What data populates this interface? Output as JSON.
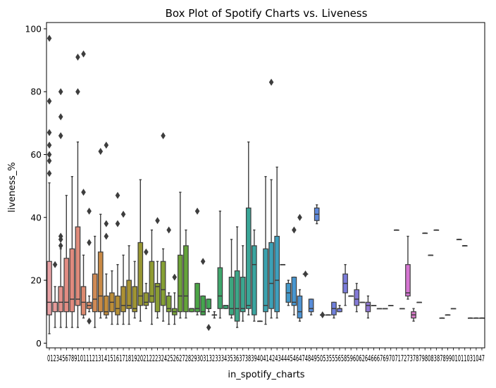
{
  "chart_data": {
    "type": "box",
    "title": "Box Plot of Spotify Charts vs. Liveness",
    "xlabel": "in_spotify_charts",
    "ylabel": "liveness_%",
    "ylim": [
      -1.5,
      102
    ],
    "yticks": [
      0,
      20,
      40,
      60,
      80,
      100
    ],
    "grid": false,
    "x_tick_labels_raw": "01234567891011121314151617181920212223242526272829303132333435363738394041424344454647484950535556585960626466676970717273787980838789901011031047",
    "categories": [
      "0",
      "1",
      "2",
      "3",
      "4",
      "5",
      "6",
      "7",
      "8",
      "9",
      "10",
      "11",
      "12",
      "13",
      "14",
      "15",
      "16",
      "17",
      "18",
      "19",
      "20",
      "21",
      "22",
      "23",
      "24",
      "25",
      "26",
      "27",
      "28",
      "29",
      "30",
      "31",
      "32",
      "33",
      "34",
      "35",
      "36",
      "37",
      "38",
      "39",
      "40",
      "41",
      "42",
      "43",
      "44",
      "45",
      "46",
      "47",
      "48",
      "49",
      "50",
      "53",
      "55",
      "56",
      "58",
      "59",
      "60",
      "62",
      "64",
      "66",
      "67",
      "69",
      "70",
      "71",
      "72",
      "73",
      "78",
      "79",
      "80",
      "83",
      "87",
      "89",
      "90",
      "101",
      "103",
      "104",
      "107"
    ],
    "boxes": [
      {
        "cat": "0",
        "whislo": 3,
        "q1": 9,
        "median": 13,
        "q3": 26,
        "whishi": 51,
        "outliers": [
          54,
          58,
          60,
          63,
          67,
          77,
          97
        ],
        "color": "#e8a0a4"
      },
      {
        "cat": "1",
        "whislo": 5,
        "q1": 10,
        "median": 13,
        "q3": 13,
        "whishi": 18,
        "outliers": [
          25
        ],
        "color": "#e59c9a"
      },
      {
        "cat": "2",
        "whislo": 5,
        "q1": 10,
        "median": 13,
        "q3": 18,
        "whishi": 30,
        "outliers": [
          31,
          33,
          34,
          66,
          72,
          80
        ],
        "color": "#e0908a"
      },
      {
        "cat": "3",
        "whislo": 5,
        "q1": 10,
        "median": 13,
        "q3": 27,
        "whishi": 47,
        "outliers": [],
        "color": "#e28c83"
      },
      {
        "cat": "4",
        "whislo": 5,
        "q1": 10,
        "median": 14,
        "q3": 30,
        "whishi": 53,
        "outliers": [],
        "color": "#e08a7e"
      },
      {
        "cat": "5",
        "whislo": 5,
        "q1": 12,
        "median": 14,
        "q3": 37,
        "whishi": 64,
        "outliers": [
          80,
          91
        ],
        "color": "#de8a7a"
      },
      {
        "cat": "6",
        "whislo": 8,
        "q1": 9,
        "median": 13,
        "q3": 18,
        "whishi": 28,
        "outliers": [
          48,
          92
        ],
        "color": "#dc8a70"
      },
      {
        "cat": "7",
        "whislo": 10,
        "q1": 11,
        "median": 12,
        "q3": 13,
        "whishi": 15,
        "outliers": [
          7,
          32,
          42
        ],
        "color": "#d78a68"
      },
      {
        "cat": "8",
        "whislo": 5,
        "q1": 10,
        "median": 14,
        "q3": 22,
        "whishi": 34,
        "outliers": [],
        "color": "#d08a55"
      },
      {
        "cat": "9",
        "whislo": 8,
        "q1": 10,
        "median": 15,
        "q3": 29,
        "whishi": 41,
        "outliers": [
          61
        ],
        "color": "#c98a45"
      },
      {
        "cat": "10",
        "whislo": 8,
        "q1": 9,
        "median": 10,
        "q3": 15,
        "whishi": 22,
        "outliers": [
          34,
          38,
          63
        ],
        "color": "#c28c3c"
      },
      {
        "cat": "11",
        "whislo": 6,
        "q1": 10,
        "median": 13,
        "q3": 16,
        "whishi": 23,
        "outliers": [],
        "color": "#bc8d37"
      },
      {
        "cat": "12",
        "whislo": 6,
        "q1": 9,
        "median": 11,
        "q3": 15,
        "whishi": 25,
        "outliers": [
          38,
          47
        ],
        "color": "#b58f35"
      },
      {
        "cat": "13",
        "whislo": 6,
        "q1": 10,
        "median": 12,
        "q3": 18,
        "whishi": 28,
        "outliers": [
          41
        ],
        "color": "#ae9133"
      },
      {
        "cat": "14",
        "whislo": 6,
        "q1": 11,
        "median": 12,
        "q3": 20,
        "whishi": 31,
        "outliers": [],
        "color": "#a79333"
      },
      {
        "cat": "15",
        "whislo": 8,
        "q1": 10,
        "median": 11,
        "q3": 18,
        "whishi": 26,
        "outliers": [],
        "color": "#a09532"
      },
      {
        "cat": "16",
        "whislo": 7,
        "q1": 12,
        "median": 15,
        "q3": 32,
        "whishi": 52,
        "outliers": [],
        "color": "#999732"
      },
      {
        "cat": "17",
        "whislo": 11,
        "q1": 12,
        "median": 13,
        "q3": 16,
        "whishi": 19,
        "outliers": [
          29
        ],
        "color": "#949932"
      },
      {
        "cat": "18",
        "whislo": 6,
        "q1": 13,
        "median": 15,
        "q3": 26,
        "whishi": 36,
        "outliers": [],
        "color": "#8f9b32"
      },
      {
        "cat": "19",
        "whislo": 8,
        "q1": 10,
        "median": 18,
        "q3": 19,
        "whishi": 26,
        "outliers": [
          39
        ],
        "color": "#8a9d33"
      },
      {
        "cat": "20",
        "whislo": 7,
        "q1": 12,
        "median": 17,
        "q3": 26,
        "whishi": 30,
        "outliers": [
          66
        ],
        "color": "#859f34"
      },
      {
        "cat": "21",
        "whislo": 6,
        "q1": 10,
        "median": 11,
        "q3": 15,
        "whishi": 16,
        "outliers": [
          36
        ],
        "color": "#80a136"
      },
      {
        "cat": "22",
        "whislo": 6,
        "q1": 9,
        "median": 10,
        "q3": 11,
        "whishi": 16,
        "outliers": [
          21
        ],
        "color": "#78a237"
      },
      {
        "cat": "23",
        "whislo": 8,
        "q1": 10,
        "median": 15,
        "q3": 28,
        "whishi": 48,
        "outliers": [],
        "color": "#6ea338"
      },
      {
        "cat": "24",
        "whislo": 8,
        "q1": 10,
        "median": 15,
        "q3": 31,
        "whishi": 36,
        "outliers": [],
        "color": "#64a43a"
      },
      {
        "cat": "25",
        "whislo": 10,
        "q1": 10,
        "median": 11,
        "q3": 11,
        "whishi": 11,
        "outliers": [],
        "color": "#58a540"
      },
      {
        "cat": "26",
        "whislo": 9,
        "q1": 10,
        "median": 11,
        "q3": 19,
        "whishi": 19,
        "outliers": [
          42
        ],
        "color": "#4ca646"
      },
      {
        "cat": "27",
        "whislo": 9,
        "q1": 9,
        "median": 10,
        "q3": 15,
        "whishi": 15,
        "outliers": [
          26
        ],
        "color": "#45a64e"
      },
      {
        "cat": "28",
        "whislo": 10,
        "q1": 11,
        "median": 11,
        "q3": 14,
        "whishi": 14,
        "outliers": [
          5
        ],
        "color": "#42a658"
      },
      {
        "cat": "29",
        "whislo": 8,
        "q1": 9,
        "median": 9,
        "q3": 9,
        "whishi": 10,
        "outliers": [],
        "color": "#40a662"
      },
      {
        "cat": "30",
        "whislo": 8,
        "q1": 11,
        "median": 15,
        "q3": 24,
        "whishi": 42,
        "outliers": [],
        "color": "#3fa66c"
      },
      {
        "cat": "31",
        "whislo": 11,
        "q1": 11,
        "median": 12,
        "q3": 12,
        "whishi": 12,
        "outliers": [],
        "color": "#3ea676"
      },
      {
        "cat": "32",
        "whislo": 8,
        "q1": 9,
        "median": 11,
        "q3": 21,
        "whishi": 33,
        "outliers": [],
        "color": "#3da67f"
      },
      {
        "cat": "33",
        "whislo": 5,
        "q1": 7,
        "median": 11,
        "q3": 23,
        "whishi": 37,
        "outliers": [],
        "color": "#3ca688"
      },
      {
        "cat": "34",
        "whislo": 7,
        "q1": 10,
        "median": 11,
        "q3": 21,
        "whishi": 31,
        "outliers": [],
        "color": "#3ba690"
      },
      {
        "cat": "35",
        "whislo": 9,
        "q1": 11,
        "median": 12,
        "q3": 43,
        "whishi": 64,
        "outliers": [],
        "color": "#3aa698"
      },
      {
        "cat": "36",
        "whislo": 7,
        "q1": 9,
        "median": 25,
        "q3": 31,
        "whishi": 36,
        "outliers": [],
        "color": "#3aa5a0"
      },
      {
        "cat": "37",
        "whislo": 7,
        "q1": 7,
        "median": 7,
        "q3": 7,
        "whishi": 7,
        "outliers": [],
        "color": "#3aa4a8"
      },
      {
        "cat": "38",
        "whislo": 6,
        "q1": 10,
        "median": 12,
        "q3": 30,
        "whishi": 53,
        "outliers": [],
        "color": "#3ba3b0"
      },
      {
        "cat": "39",
        "whislo": 8,
        "q1": 11,
        "median": 19,
        "q3": 32,
        "whishi": 52,
        "outliers": [
          83
        ],
        "color": "#3ca1b7"
      },
      {
        "cat": "40",
        "whislo": 8,
        "q1": 10,
        "median": 20,
        "q3": 34,
        "whishi": 56,
        "outliers": [],
        "color": "#3e9fbe"
      },
      {
        "cat": "41",
        "whislo": 25,
        "q1": 25,
        "median": 25,
        "q3": 25,
        "whishi": 25,
        "outliers": [],
        "color": "#409cc4"
      },
      {
        "cat": "42",
        "whislo": 12,
        "q1": 13,
        "median": 16,
        "q3": 19,
        "whishi": 20,
        "outliers": [],
        "color": "#4399ca"
      },
      {
        "cat": "43",
        "whislo": 9,
        "q1": 12,
        "median": 13,
        "q3": 21,
        "whishi": 21,
        "outliers": [
          36
        ],
        "color": "#4796cf"
      },
      {
        "cat": "44",
        "whislo": 7,
        "q1": 8,
        "median": 10,
        "q3": 15,
        "whishi": 17,
        "outliers": [
          40
        ],
        "color": "#4c93d3"
      },
      {
        "cat": "45",
        "whislo": 22,
        "q1": 22,
        "median": 22,
        "q3": 22,
        "whishi": 22,
        "outliers": [
          22
        ],
        "color": "#528fd6"
      },
      {
        "cat": "46",
        "whislo": 9,
        "q1": 10,
        "median": 11,
        "q3": 14,
        "whishi": 14,
        "outliers": [],
        "color": "#578cd9"
      },
      {
        "cat": "47",
        "whislo": 38,
        "q1": 39,
        "median": 41,
        "q3": 43,
        "whishi": 44,
        "outliers": [],
        "color": "#5d88db"
      },
      {
        "cat": "48",
        "whislo": 9,
        "q1": 9,
        "median": 9,
        "q3": 9,
        "whishi": 9,
        "outliers": [
          9
        ],
        "color": "#6385dc"
      },
      {
        "cat": "49",
        "whislo": 9,
        "q1": 9,
        "median": 9,
        "q3": 9,
        "whishi": 9,
        "outliers": [],
        "color": "#6982dd"
      },
      {
        "cat": "50",
        "whislo": 8,
        "q1": 9,
        "median": 11,
        "q3": 13,
        "whishi": 13,
        "outliers": [],
        "color": "#6f80dd"
      },
      {
        "cat": "53",
        "whislo": 10,
        "q1": 10,
        "median": 11,
        "q3": 11,
        "whishi": 12,
        "outliers": [],
        "color": "#757edc"
      },
      {
        "cat": "55",
        "whislo": 12,
        "q1": 16,
        "median": 19,
        "q3": 22,
        "whishi": 25,
        "outliers": [],
        "color": "#7a7cdb"
      },
      {
        "cat": "56",
        "whislo": 15,
        "q1": 15,
        "median": 15,
        "q3": 15,
        "whishi": 15,
        "outliers": [],
        "color": "#7f7bd9"
      },
      {
        "cat": "58",
        "whislo": 10,
        "q1": 12,
        "median": 14,
        "q3": 17,
        "whishi": 19,
        "outliers": [],
        "color": "#847ad7"
      },
      {
        "cat": "59",
        "whislo": 13,
        "q1": 13,
        "median": 13,
        "q3": 13,
        "whishi": 13,
        "outliers": [],
        "color": "#8a79d5"
      },
      {
        "cat": "60",
        "whislo": 8,
        "q1": 10,
        "median": 12,
        "q3": 13,
        "whishi": 15,
        "outliers": [],
        "color": "#9078d2"
      },
      {
        "cat": "62",
        "whislo": 12,
        "q1": 12,
        "median": 12,
        "q3": 12,
        "whishi": 12,
        "outliers": [],
        "color": "#9677cf"
      },
      {
        "cat": "64",
        "whislo": 11,
        "q1": 11,
        "median": 11,
        "q3": 11,
        "whishi": 11,
        "outliers": [],
        "color": "#9c76cc"
      },
      {
        "cat": "66",
        "whislo": 11,
        "q1": 11,
        "median": 11,
        "q3": 11,
        "whishi": 11,
        "outliers": [],
        "color": "#a275c8"
      },
      {
        "cat": "67",
        "whislo": 12,
        "q1": 12,
        "median": 12,
        "q3": 12,
        "whishi": 12,
        "outliers": [],
        "color": "#a874c4"
      },
      {
        "cat": "69",
        "whislo": 36,
        "q1": 36,
        "median": 36,
        "q3": 36,
        "whishi": 36,
        "outliers": [],
        "color": "#ae73c0"
      },
      {
        "cat": "70",
        "whislo": 11,
        "q1": 11,
        "median": 11,
        "q3": 11,
        "whishi": 11,
        "outliers": [],
        "color": "#b472bb"
      },
      {
        "cat": "71",
        "whislo": 14,
        "q1": 15,
        "median": 16,
        "q3": 25,
        "whishi": 34,
        "outliers": [],
        "color": "#d575d2"
      },
      {
        "cat": "72",
        "whislo": 7,
        "q1": 8,
        "median": 9,
        "q3": 10,
        "whishi": 11,
        "outliers": [],
        "color": "#d87ac8"
      },
      {
        "cat": "73",
        "whislo": 13,
        "q1": 13,
        "median": 13,
        "q3": 13,
        "whishi": 13,
        "outliers": [],
        "color": "#db7fbe"
      },
      {
        "cat": "78",
        "whislo": 35,
        "q1": 35,
        "median": 35,
        "q3": 35,
        "whishi": 35,
        "outliers": [],
        "color": "#dd84b4"
      },
      {
        "cat": "79",
        "whislo": 28,
        "q1": 28,
        "median": 28,
        "q3": 28,
        "whishi": 28,
        "outliers": [],
        "color": "#df89aa"
      },
      {
        "cat": "80",
        "whislo": 36,
        "q1": 36,
        "median": 36,
        "q3": 36,
        "whishi": 36,
        "outliers": [],
        "color": "#e08ea0"
      },
      {
        "cat": "83",
        "whislo": 8,
        "q1": 8,
        "median": 8,
        "q3": 8,
        "whishi": 8,
        "outliers": [],
        "color": "#e19398"
      },
      {
        "cat": "87",
        "whislo": 9,
        "q1": 9,
        "median": 9,
        "q3": 9,
        "whishi": 9,
        "outliers": [],
        "color": "#e29892"
      },
      {
        "cat": "89",
        "whislo": 11,
        "q1": 11,
        "median": 11,
        "q3": 11,
        "whishi": 11,
        "outliers": [],
        "color": "#e39d8e"
      },
      {
        "cat": "90",
        "whislo": 33,
        "q1": 33,
        "median": 33,
        "q3": 33,
        "whishi": 33,
        "outliers": [],
        "color": "#e4a28c"
      },
      {
        "cat": "101",
        "whislo": 31,
        "q1": 31,
        "median": 31,
        "q3": 31,
        "whishi": 31,
        "outliers": [],
        "color": "#e5a78a"
      },
      {
        "cat": "103",
        "whislo": 8,
        "q1": 8,
        "median": 8,
        "q3": 8,
        "whishi": 8,
        "outliers": [],
        "color": "#e6ac88"
      },
      {
        "cat": "104",
        "whislo": 8,
        "q1": 8,
        "median": 8,
        "q3": 8,
        "whishi": 8,
        "outliers": [],
        "color": "#e7b186"
      },
      {
        "cat": "107",
        "whislo": 8,
        "q1": 8,
        "median": 8,
        "q3": 8,
        "whishi": 8,
        "outliers": [],
        "color": "#e8b684"
      }
    ],
    "line_color": "#3d3d3d"
  }
}
